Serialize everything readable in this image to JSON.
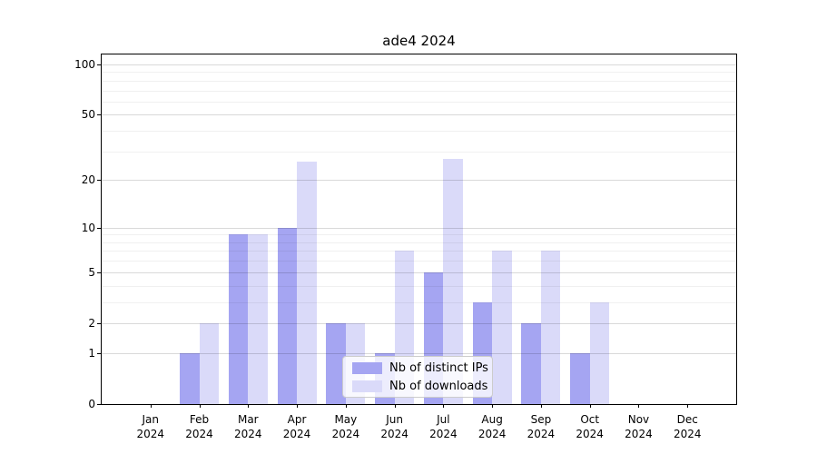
{
  "chart_data": {
    "type": "bar",
    "title": "ade4 2024",
    "categories": [
      "Jan",
      "Feb",
      "Mar",
      "Apr",
      "May",
      "Jun",
      "Jul",
      "Aug",
      "Sep",
      "Oct",
      "Nov",
      "Dec"
    ],
    "category_year": "2024",
    "series": [
      {
        "name": "Nb of distinct IPs",
        "color": "#a5a5f2",
        "values": [
          0,
          1,
          9,
          10,
          2,
          1,
          5,
          3,
          2,
          1,
          0,
          0
        ]
      },
      {
        "name": "Nb of downloads",
        "color": "#dadaf9",
        "values": [
          0,
          2,
          9,
          26,
          2,
          7,
          27,
          7,
          7,
          3,
          0,
          0
        ]
      }
    ],
    "ylabel": "",
    "xlabel": "",
    "yscale": "log1p",
    "ylim": [
      0,
      113
    ],
    "y_major_ticks": [
      0,
      1,
      2,
      5,
      10,
      20,
      50,
      100
    ],
    "y_minor_gridlines": [
      3,
      4,
      6,
      7,
      8,
      9,
      30,
      40,
      60,
      70,
      80,
      90
    ],
    "grid": true,
    "legend_position": "lower center"
  }
}
